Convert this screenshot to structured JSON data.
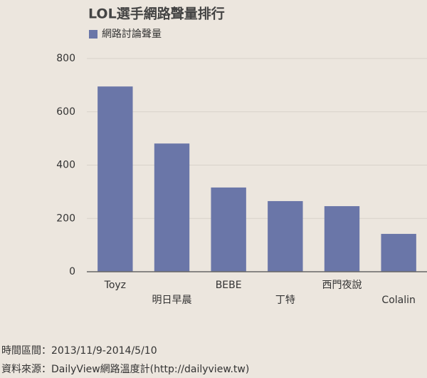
{
  "chart_data": {
    "type": "bar",
    "title": "LOL選手網路聲量排行",
    "legend": "網路討論聲量",
    "categories": [
      "Toyz",
      "明日早晨",
      "BEBE",
      "丁特",
      "西門夜說",
      "Colalin"
    ],
    "values": [
      695,
      481,
      316,
      265,
      246,
      142
    ],
    "color": "#6a76a8",
    "ylim": [
      0,
      800
    ],
    "yticks": [
      0,
      200,
      400,
      600,
      800
    ],
    "grid": true,
    "period": "時間區間：2013/11/9-2014/5/10",
    "source": "資料來源：DailyView網路溫度計(http://dailyview.tw)"
  }
}
